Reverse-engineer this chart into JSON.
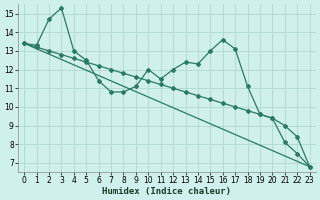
{
  "background_color": "#cff0ec",
  "grid_color": "#b0d8d4",
  "line_color": "#2a7a65",
  "xlabel": "Humidex (Indice chaleur)",
  "xlim": [
    -0.5,
    23.5
  ],
  "ylim": [
    6.5,
    15.5
  ],
  "xticks": [
    0,
    1,
    2,
    3,
    4,
    5,
    6,
    7,
    8,
    9,
    10,
    11,
    12,
    13,
    14,
    15,
    16,
    17,
    18,
    19,
    20,
    21,
    22,
    23
  ],
  "yticks": [
    7,
    8,
    9,
    10,
    11,
    12,
    13,
    14,
    15
  ],
  "curve1_x": [
    0,
    1,
    2,
    3,
    4,
    5,
    6,
    7,
    8,
    9,
    10,
    11,
    12,
    13,
    14,
    15,
    16,
    17,
    18,
    19,
    20,
    21,
    22,
    23
  ],
  "curve1_y": [
    13.4,
    13.3,
    14.7,
    15.3,
    13.0,
    12.5,
    11.4,
    10.8,
    10.8,
    11.1,
    12.0,
    11.5,
    12.0,
    12.4,
    12.3,
    13.0,
    13.6,
    13.1,
    11.1,
    9.6,
    9.4,
    8.1,
    7.5,
    6.8
  ],
  "curve2_x": [
    0,
    1,
    2,
    3,
    4,
    5,
    6,
    7,
    8,
    9,
    10,
    11,
    12,
    13,
    14,
    15,
    16,
    17,
    18,
    19,
    20,
    21,
    22,
    23
  ],
  "curve2_y": [
    13.4,
    13.2,
    13.0,
    12.8,
    12.6,
    12.4,
    12.2,
    12.0,
    11.8,
    11.6,
    11.4,
    11.2,
    11.0,
    10.8,
    10.6,
    10.4,
    10.2,
    10.0,
    9.8,
    9.6,
    9.4,
    9.0,
    8.4,
    6.8
  ],
  "curve3_x": [
    0,
    23
  ],
  "curve3_y": [
    13.4,
    6.8
  ]
}
